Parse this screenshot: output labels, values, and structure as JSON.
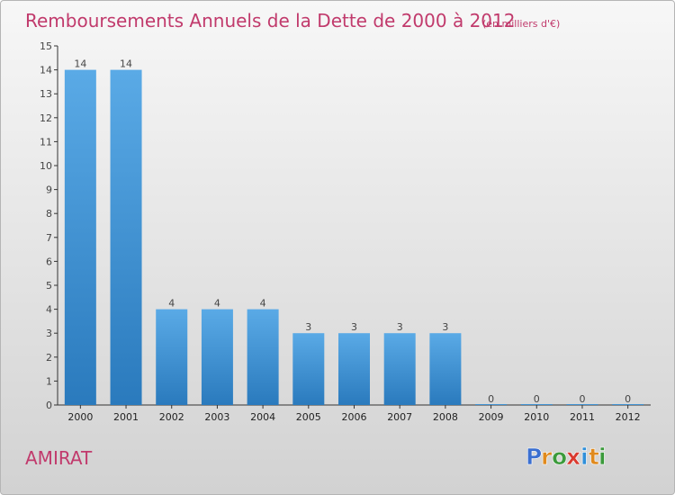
{
  "chart_data": {
    "type": "bar",
    "title": "Remboursements Annuels de la Dette de 2000 à 2012",
    "subtitle": "(en milliers d'€)",
    "categories": [
      "2000",
      "2001",
      "2002",
      "2003",
      "2004",
      "2005",
      "2006",
      "2007",
      "2008",
      "2009",
      "2010",
      "2011",
      "2012"
    ],
    "values": [
      14,
      14,
      4,
      4,
      4,
      3,
      3,
      3,
      3,
      0,
      0,
      0,
      0
    ],
    "ylim": [
      0,
      15
    ],
    "yticks": [
      0,
      1,
      2,
      3,
      4,
      5,
      6,
      7,
      8,
      9,
      10,
      11,
      12,
      13,
      14,
      15
    ],
    "xlabel": "",
    "ylabel": "",
    "grid": false,
    "legend": "none"
  },
  "commune": "AMIRAT",
  "logo": {
    "letters": [
      "P",
      "r",
      "o",
      "x",
      "i",
      "t",
      "i"
    ]
  },
  "colors": {
    "title": "#c13a6c",
    "bar_top": "#5aaae6",
    "bar_bottom": "#2a7abd",
    "axis": "#333333"
  }
}
